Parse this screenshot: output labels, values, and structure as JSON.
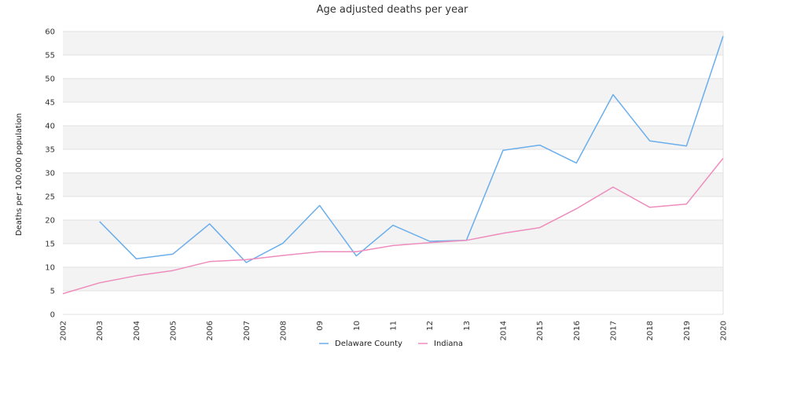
{
  "chart_data": {
    "type": "line",
    "title": "Age adjusted deaths per year",
    "xlabel": "",
    "ylabel": "Deaths per 100,000 population",
    "ylim": [
      0,
      60
    ],
    "yticks": [
      0,
      5,
      10,
      15,
      20,
      25,
      30,
      35,
      40,
      45,
      50,
      55,
      60
    ],
    "categories": [
      "2002",
      "2003",
      "2004",
      "2005",
      "2006",
      "2007",
      "2008",
      "09",
      "10",
      "11",
      "12",
      "13",
      "2014",
      "2015",
      "2016",
      "2017",
      "2018",
      "2019",
      "2020"
    ],
    "grid": "alternating horizontal bands",
    "legend_position": "bottom-center",
    "series": [
      {
        "name": "Delaware County",
        "color": "#6aaeec",
        "values": [
          null,
          19.7,
          11.8,
          12.8,
          19.2,
          11.0,
          15.1,
          23.1,
          12.4,
          18.9,
          15.5,
          15.7,
          34.8,
          35.9,
          32.1,
          46.6,
          36.8,
          35.7,
          59.0
        ]
      },
      {
        "name": "Indiana",
        "color": "#ee8dbd",
        "values": [
          4.4,
          6.7,
          8.2,
          9.3,
          11.2,
          11.6,
          12.5,
          13.3,
          13.3,
          14.6,
          15.2,
          15.7,
          17.2,
          18.4,
          22.4,
          27.0,
          22.7,
          23.4,
          33.1
        ]
      }
    ]
  }
}
